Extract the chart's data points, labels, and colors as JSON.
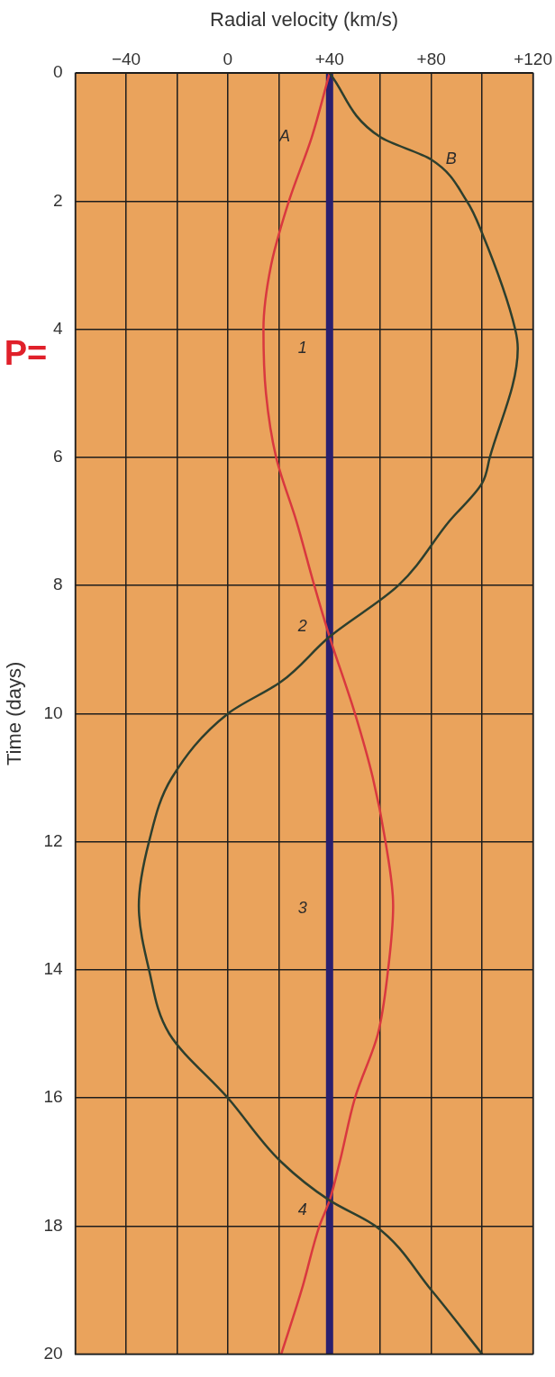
{
  "chart_data": {
    "type": "line",
    "xlabel": "Radial velocity (km/s)",
    "ylabel": "Time (days)",
    "xlim": [
      -60,
      120
    ],
    "xticks": [
      {
        "value": -60,
        "label": null
      },
      {
        "value": -40,
        "label": "−40"
      },
      {
        "value": -20,
        "label": null
      },
      0,
      {
        "value": 20,
        "label": null
      },
      {
        "value": 40,
        "label": "+40"
      },
      {
        "value": 60,
        "label": null
      },
      {
        "value": 80,
        "label": "+80"
      },
      {
        "value": 100,
        "label": null
      },
      {
        "value": 120,
        "label": "+120"
      }
    ],
    "ylim": [
      20,
      0
    ],
    "yticks": [
      0,
      2,
      4,
      6,
      8,
      10,
      12,
      14,
      16,
      18,
      20
    ],
    "grid": true,
    "legend": false,
    "marker": "none",
    "line_style": "solid",
    "series": [
      {
        "color": "#2d3f2e",
        "x": [
          40,
          60,
          80,
          94,
          100,
          113,
          114,
          103,
          100,
          87,
          67,
          40,
          21,
          0,
          -22,
          -31,
          -35,
          -31,
          -23,
          0,
          21,
          40,
          58,
          80,
          100
        ],
        "values": [
          0,
          1,
          1.35,
          2,
          2.5,
          4,
          4.3,
          6,
          6.4,
          7,
          8,
          8.8,
          9.5,
          10,
          11,
          12,
          13,
          14,
          15,
          16,
          17,
          17.6,
          18,
          19,
          20
        ]
      },
      {
        "color": "#d9383f",
        "x": [
          40,
          33,
          24,
          17,
          14,
          15,
          19,
          27,
          34,
          40,
          50,
          57,
          62,
          65,
          63,
          59,
          50,
          44,
          40,
          36,
          29,
          21
        ],
        "values": [
          0,
          1,
          2,
          3,
          4,
          5,
          6,
          7,
          8,
          8.8,
          10,
          11,
          12,
          13,
          14,
          15,
          16,
          17,
          17.6,
          18,
          19,
          20
        ]
      },
      {
        "color": "#2a1f6e",
        "x": [
          40,
          40
        ],
        "values": [
          0,
          20
        ]
      }
    ],
    "annotations": [
      {
        "text": "A",
        "x": 33,
        "y": 1
      },
      {
        "text": "B",
        "x": 80,
        "y": 1.35
      },
      {
        "text": "1",
        "x": 40,
        "y": 4.3
      },
      {
        "text": "2",
        "x": 40,
        "y": 8.65
      },
      {
        "text": "3",
        "x": 40,
        "y": 13.05
      },
      {
        "text": "4",
        "x": 40,
        "y": 17.75
      },
      "P="
    ]
  }
}
